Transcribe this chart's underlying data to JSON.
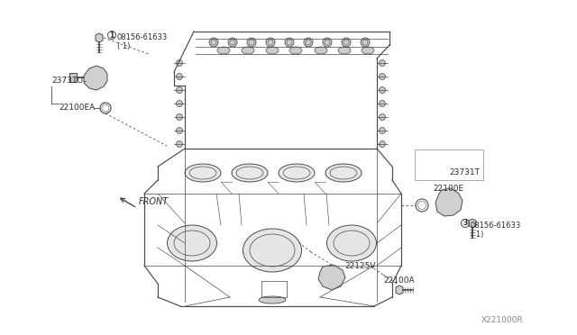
{
  "bg_color": "#ffffff",
  "fig_width": 6.4,
  "fig_height": 3.72,
  "dpi": 100,
  "line_color": "#4a4a4a",
  "text_color": "#2a2a2a",
  "labels": {
    "bolt_top_num": "1",
    "bolt_top": "08156-61633\n( 1)",
    "label_23731U": "23731U",
    "label_22100EA": "22100EA",
    "label_front": "FRONT",
    "label_23731T": "23731T",
    "label_22100E": "22100E",
    "bolt_right_num": "3",
    "bolt_right": "08156-61633\n( 1)",
    "label_22125V": "22125V",
    "label_22100A": "22100A",
    "watermark": "X221000R"
  }
}
